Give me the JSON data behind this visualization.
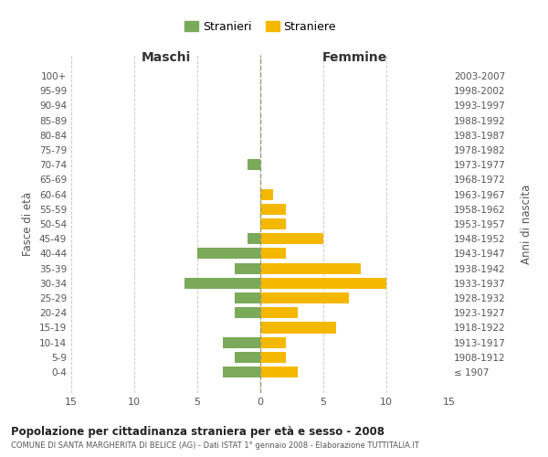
{
  "age_groups": [
    "100+",
    "95-99",
    "90-94",
    "85-89",
    "80-84",
    "75-79",
    "70-74",
    "65-69",
    "60-64",
    "55-59",
    "50-54",
    "45-49",
    "40-44",
    "35-39",
    "30-34",
    "25-29",
    "20-24",
    "15-19",
    "10-14",
    "5-9",
    "0-4"
  ],
  "birth_years": [
    "≤ 1907",
    "1908-1912",
    "1913-1917",
    "1918-1922",
    "1923-1927",
    "1928-1932",
    "1933-1937",
    "1938-1942",
    "1943-1947",
    "1948-1952",
    "1953-1957",
    "1958-1962",
    "1963-1967",
    "1968-1972",
    "1973-1977",
    "1978-1982",
    "1983-1987",
    "1988-1992",
    "1993-1997",
    "1998-2002",
    "2003-2007"
  ],
  "maschi": [
    0,
    0,
    0,
    0,
    0,
    0,
    1,
    0,
    0,
    0,
    0,
    1,
    5,
    2,
    6,
    2,
    2,
    0,
    3,
    2,
    3
  ],
  "femmine": [
    0,
    0,
    0,
    0,
    0,
    0,
    0,
    0,
    1,
    2,
    2,
    5,
    2,
    8,
    10,
    7,
    3,
    6,
    2,
    2,
    3
  ],
  "male_color": "#7aaa5a",
  "female_color": "#f5b800",
  "title": "Popolazione per cittadinanza straniera per età e sesso - 2008",
  "subtitle": "COMUNE DI SANTA MARGHERITA DI BELICE (AG) - Dati ISTAT 1° gennaio 2008 - Elaborazione TUTTITALIA.IT",
  "legend_male": "Stranieri",
  "legend_female": "Straniere",
  "xlabel_left": "Maschi",
  "xlabel_right": "Femmine",
  "ylabel_left": "Fasce di età",
  "ylabel_right": "Anni di nascita",
  "xlim": 15,
  "background_color": "#ffffff",
  "grid_color": "#cccccc"
}
